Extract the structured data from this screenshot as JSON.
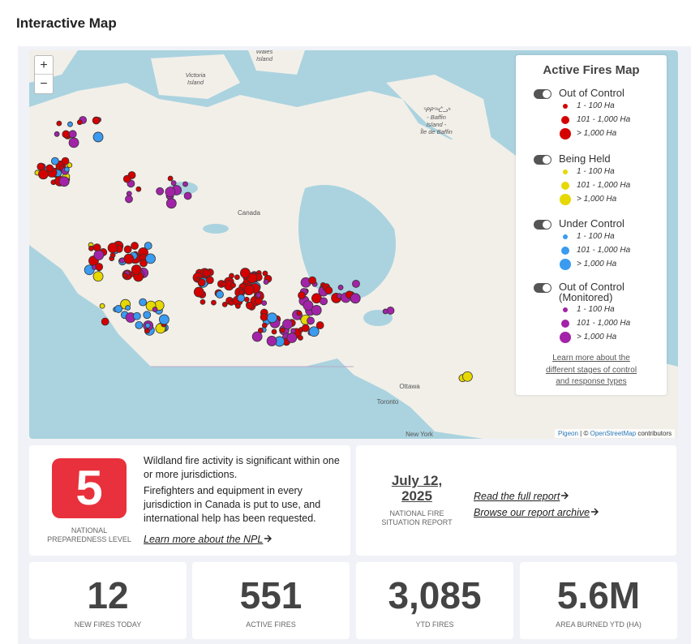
{
  "header": {
    "title": "Interactive Map"
  },
  "map": {
    "zoom_in": "+",
    "zoom_out": "−",
    "labels": [
      {
        "lines": [
          "Victoria",
          "Island"
        ]
      },
      {
        "lines": [
          "Wales",
          "Island"
        ]
      },
      {
        "lines": [
          "ᕿᑭᖅᑖᓗᒃ",
          "- Baffin",
          "Island -",
          "Île de Baffin"
        ]
      },
      {
        "lines": [
          "Canada"
        ]
      },
      {
        "lines": [
          "Ottawa"
        ]
      },
      {
        "lines": [
          "Toronto"
        ]
      },
      {
        "lines": [
          "New York"
        ]
      }
    ],
    "attribution": {
      "source": "Pigeon",
      "separator": "| ©",
      "osm": "OpenStreetMap",
      "suffix": "contributors"
    }
  },
  "legend": {
    "title": "Active Fires Map",
    "groups": [
      {
        "name": "Out of Control",
        "color": "#d40000",
        "sizes": [
          "1 - 100 Ha",
          "101 - 1,000 Ha",
          "> 1,000 Ha"
        ]
      },
      {
        "name": "Being Held",
        "color": "#e6d800",
        "sizes": [
          "1 - 100 Ha",
          "101 - 1,000 Ha",
          "> 1,000 Ha"
        ]
      },
      {
        "name": "Under Control",
        "color": "#3a9bf0",
        "sizes": [
          "1 - 100 Ha",
          "101 - 1,000 Ha",
          "> 1,000 Ha"
        ]
      },
      {
        "name": "Out of Control (Monitored)",
        "color": "#a323a8",
        "sizes": [
          "1 - 100 Ha",
          "101 - 1,000 Ha",
          "> 1,000 Ha"
        ]
      }
    ],
    "link": "Learn more about the different stages of control and response types"
  },
  "npl": {
    "level": "5",
    "label": "NATIONAL PREPAREDNESS LEVEL",
    "paragraphs": [
      "Wildland fire activity is significant within one or more jurisdictions.",
      "Firefighters and equipment in every jurisdiction in Canada is put to use, and international help has been requested."
    ],
    "link": "Learn more about the NPL"
  },
  "report": {
    "date": "July 12, 2025",
    "label": "NATIONAL FIRE SITUATION REPORT",
    "links": [
      "Read the full report",
      "Browse our report archive"
    ]
  },
  "stats": [
    {
      "value": "12",
      "label": "NEW FIRES TODAY"
    },
    {
      "value": "551",
      "label": "ACTIVE FIRES"
    },
    {
      "value": "3,085",
      "label": "YTD FIRES"
    },
    {
      "value": "5.6M",
      "label": "AREA BURNED YTD (HA)"
    }
  ]
}
